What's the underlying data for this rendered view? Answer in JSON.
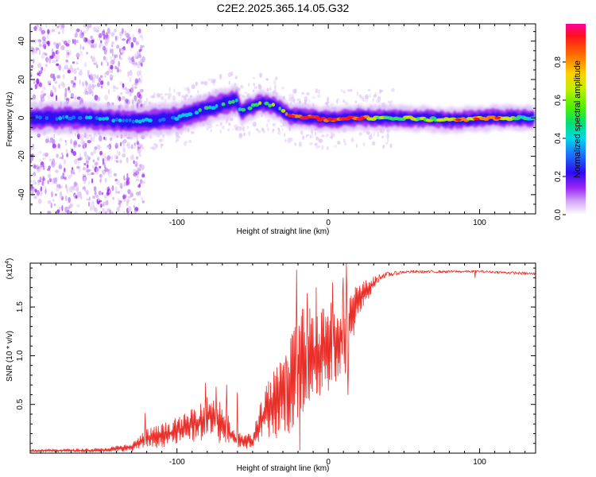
{
  "chart_data": [
    {
      "type": "heatmap",
      "title": "C2E2.2025.365.14.05.G32",
      "xlabel": "Height of straight line (km)",
      "ylabel": "Frequency (Hz)",
      "xlim": [
        -197,
        137
      ],
      "ylim": [
        -50,
        49
      ],
      "xticks": [
        -100,
        0,
        100
      ],
      "yticks": [
        -40,
        -20,
        0,
        20,
        40
      ],
      "colorbar": {
        "label": "Normalized spectral amplitude",
        "range": [
          0,
          1
        ],
        "ticks": [
          "0.0",
          "0.2",
          "0.4",
          "0.6",
          "0.8"
        ]
      },
      "ridge": [
        {
          "x": -197,
          "f": 0,
          "amp": 0.4
        },
        {
          "x": -160,
          "f": 0,
          "amp": 0.45
        },
        {
          "x": -130,
          "f": -2,
          "amp": 0.45
        },
        {
          "x": -100,
          "f": 0,
          "amp": 0.5
        },
        {
          "x": -80,
          "f": 5,
          "amp": 0.55
        },
        {
          "x": -60,
          "f": 9,
          "amp": 0.55
        },
        {
          "x": -58,
          "f": 3,
          "amp": 0.5
        },
        {
          "x": -45,
          "f": 8,
          "amp": 0.7
        },
        {
          "x": -35,
          "f": 6,
          "amp": 0.65
        },
        {
          "x": -25,
          "f": 1,
          "amp": 0.85
        },
        {
          "x": -10,
          "f": 0,
          "amp": 0.95
        },
        {
          "x": 0,
          "f": -1,
          "amp": 0.9
        },
        {
          "x": 15,
          "f": 0,
          "amp": 0.95
        },
        {
          "x": 40,
          "f": 0,
          "amp": 0.6
        },
        {
          "x": 85,
          "f": -1,
          "amp": 0.8
        },
        {
          "x": 110,
          "f": 0,
          "amp": 0.85
        },
        {
          "x": 137,
          "f": 0,
          "amp": 0.5
        }
      ]
    },
    {
      "type": "line",
      "xlabel": "Height of straight line (km)",
      "ylabel": "SNR (10 * v/v)",
      "y_scale": "(x10",
      "y_scale_exp": "4",
      "y_scale_close": ")",
      "xlim": [
        -197,
        137
      ],
      "ylim": [
        0,
        1.95
      ],
      "xticks": [
        -100,
        0,
        100
      ],
      "yticks": [
        0.5,
        1.0,
        1.5
      ],
      "ytick_labels": [
        "0.5",
        "1.0",
        "1.5"
      ],
      "color": "#e8302b",
      "envelope": [
        {
          "x": -197,
          "lo": 0.01,
          "hi": 0.04
        },
        {
          "x": -150,
          "lo": 0.01,
          "hi": 0.05
        },
        {
          "x": -130,
          "lo": 0.02,
          "hi": 0.1
        },
        {
          "x": -120,
          "lo": 0.04,
          "hi": 0.25
        },
        {
          "x": -110,
          "lo": 0.06,
          "hi": 0.3
        },
        {
          "x": -95,
          "lo": 0.1,
          "hi": 0.4
        },
        {
          "x": -85,
          "lo": 0.12,
          "hi": 0.55
        },
        {
          "x": -78,
          "lo": 0.15,
          "hi": 0.6
        },
        {
          "x": -70,
          "lo": 0.08,
          "hi": 0.55
        },
        {
          "x": -62,
          "lo": 0.05,
          "hi": 0.22
        },
        {
          "x": -50,
          "lo": 0.04,
          "hi": 0.2
        },
        {
          "x": -45,
          "lo": 0.1,
          "hi": 0.55
        },
        {
          "x": -38,
          "lo": 0.15,
          "hi": 0.8
        },
        {
          "x": -30,
          "lo": 0.15,
          "hi": 1.0
        },
        {
          "x": -25,
          "lo": 0.2,
          "hi": 1.3
        },
        {
          "x": -20,
          "lo": 0.3,
          "hi": 1.5
        },
        {
          "x": -12,
          "lo": 0.45,
          "hi": 1.55
        },
        {
          "x": -5,
          "lo": 0.55,
          "hi": 1.55
        },
        {
          "x": 5,
          "lo": 0.7,
          "hi": 1.65
        },
        {
          "x": 12,
          "lo": 0.8,
          "hi": 1.7
        },
        {
          "x": 18,
          "lo": 1.3,
          "hi": 1.72
        },
        {
          "x": 25,
          "lo": 1.55,
          "hi": 1.78
        },
        {
          "x": 35,
          "lo": 1.78,
          "hi": 1.86
        },
        {
          "x": 50,
          "lo": 1.84,
          "hi": 1.88
        },
        {
          "x": 100,
          "lo": 1.85,
          "hi": 1.88
        },
        {
          "x": 137,
          "lo": 1.82,
          "hi": 1.86
        }
      ],
      "spikes": [
        {
          "x": -121,
          "y": 0.41
        },
        {
          "x": -90,
          "y": 0.45
        },
        {
          "x": -81,
          "y": 0.72
        },
        {
          "x": -74,
          "y": 0.68
        },
        {
          "x": -67,
          "y": 0.7
        },
        {
          "x": -60,
          "y": 0.62
        },
        {
          "x": -28,
          "y": 1.0
        },
        {
          "x": -24,
          "y": 1.22
        },
        {
          "x": -21,
          "y": 1.88
        },
        {
          "x": -19,
          "y": 0.03
        },
        {
          "x": -14,
          "y": 1.64
        },
        {
          "x": -8,
          "y": 1.7
        },
        {
          "x": 3,
          "y": 1.75
        },
        {
          "x": 10,
          "y": 1.8
        },
        {
          "x": 12,
          "y": 1.95
        },
        {
          "x": 13,
          "y": 0.6
        },
        {
          "x": 97,
          "y": 1.8
        }
      ]
    }
  ]
}
